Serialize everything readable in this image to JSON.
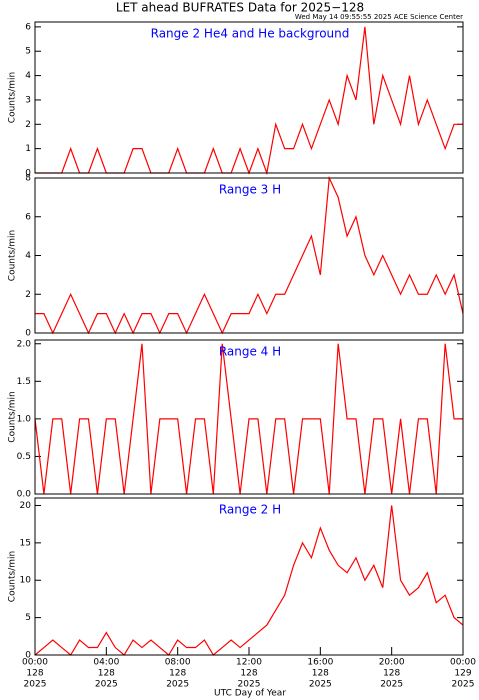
{
  "chart_data": [
    {
      "type": "line",
      "title": "LET ahead BUFRATES Data for 2025−128",
      "subtitle": "Wed May 14 09:55:55 2025 ACE Science Center",
      "label": "Range 2 He4 and He background",
      "ylabel": "Counts/min",
      "x": [
        0,
        0.5,
        1,
        1.5,
        2,
        2.5,
        3,
        3.5,
        4,
        4.5,
        5,
        5.5,
        6,
        6.5,
        7,
        7.5,
        8,
        8.5,
        9,
        9.5,
        10,
        10.5,
        11,
        11.5,
        12,
        12.5,
        13,
        13.5,
        14,
        14.5,
        15,
        15.5,
        16,
        16.5,
        17,
        17.5,
        18,
        18.5,
        19,
        19.5,
        20,
        20.5,
        21,
        21.5,
        22,
        22.5,
        23,
        23.5,
        24
      ],
      "series": [
        {
          "color": "#ff0000",
          "values": [
            0,
            0,
            0,
            0,
            1,
            0,
            0,
            1,
            0,
            0,
            0,
            1,
            1,
            0,
            0,
            0,
            1,
            0,
            0,
            0,
            1,
            0,
            0,
            1,
            0,
            1,
            0,
            2,
            1,
            1,
            2,
            1,
            2,
            3,
            2,
            4,
            3,
            6,
            2,
            4,
            3,
            2,
            4,
            2,
            3,
            2,
            1,
            2,
            2
          ]
        }
      ],
      "xlim": [
        0,
        24
      ],
      "ylim": [
        0,
        6.2
      ],
      "yticks": [
        0,
        1,
        2,
        3,
        4,
        5,
        6
      ]
    },
    {
      "type": "line",
      "label": "Range 3 H",
      "ylabel": "Counts/min",
      "x": [
        0,
        0.5,
        1,
        1.5,
        2,
        2.5,
        3,
        3.5,
        4,
        4.5,
        5,
        5.5,
        6,
        6.5,
        7,
        7.5,
        8,
        8.5,
        9,
        9.5,
        10,
        10.5,
        11,
        11.5,
        12,
        12.5,
        13,
        13.5,
        14,
        14.5,
        15,
        15.5,
        16,
        16.5,
        17,
        17.5,
        18,
        18.5,
        19,
        19.5,
        20,
        20.5,
        21,
        21.5,
        22,
        22.5,
        23,
        23.5,
        24
      ],
      "series": [
        {
          "color": "#ff0000",
          "values": [
            1,
            1,
            0,
            1,
            2,
            1,
            0,
            1,
            1,
            0,
            1,
            0,
            1,
            1,
            0,
            1,
            1,
            0,
            1,
            2,
            1,
            0,
            1,
            1,
            1,
            2,
            1,
            2,
            2,
            3,
            4,
            5,
            3,
            8,
            7,
            5,
            6,
            4,
            3,
            4,
            3,
            2,
            3,
            2,
            2,
            3,
            2,
            3,
            1
          ]
        }
      ],
      "xlim": [
        0,
        24
      ],
      "ylim": [
        0,
        8
      ],
      "yticks": [
        0,
        2,
        4,
        6,
        8
      ]
    },
    {
      "type": "line",
      "label": "Range 4 H",
      "ylabel": "Counts/min",
      "x": [
        0,
        0.5,
        1,
        1.5,
        2,
        2.5,
        3,
        3.5,
        4,
        4.5,
        5,
        5.5,
        6,
        6.5,
        7,
        7.5,
        8,
        8.5,
        9,
        9.5,
        10,
        10.5,
        11,
        11.5,
        12,
        12.5,
        13,
        13.5,
        14,
        14.5,
        15,
        15.5,
        16,
        16.5,
        17,
        17.5,
        18,
        18.5,
        19,
        19.5,
        20,
        20.5,
        21,
        21.5,
        22,
        22.5,
        23,
        23.5,
        24
      ],
      "series": [
        {
          "color": "#ff0000",
          "values": [
            1,
            0,
            1,
            1,
            0,
            1,
            1,
            0,
            1,
            1,
            0,
            1,
            2,
            0,
            1,
            1,
            1,
            0,
            1,
            1,
            0,
            2,
            1,
            0,
            1,
            1,
            0,
            1,
            1,
            0,
            1,
            1,
            1,
            0,
            2,
            1,
            1,
            0,
            1,
            1,
            0,
            1,
            0,
            1,
            1,
            0,
            2,
            1,
            1
          ]
        }
      ],
      "xlim": [
        0,
        24
      ],
      "ylim": [
        0,
        2.05
      ],
      "yticks": [
        {
          "value": 0,
          "label": "0.0"
        },
        {
          "value": 0.5,
          "label": "0.5"
        },
        {
          "value": 1,
          "label": "1.0"
        },
        {
          "value": 1.5,
          "label": "1.5"
        },
        {
          "value": 2,
          "label": "2.0"
        }
      ]
    },
    {
      "type": "line",
      "label": "Range 2 H",
      "ylabel": "Counts/min",
      "xlabel": "UTC Day of Year",
      "x": [
        0,
        0.5,
        1,
        1.5,
        2,
        2.5,
        3,
        3.5,
        4,
        4.5,
        5,
        5.5,
        6,
        6.5,
        7,
        7.5,
        8,
        8.5,
        9,
        9.5,
        10,
        10.5,
        11,
        11.5,
        12,
        12.5,
        13,
        13.5,
        14,
        14.5,
        15,
        15.5,
        16,
        16.5,
        17,
        17.5,
        18,
        18.5,
        19,
        19.5,
        20,
        20.5,
        21,
        21.5,
        22,
        22.5,
        23,
        23.5,
        24
      ],
      "series": [
        {
          "color": "#ff0000",
          "values": [
            0,
            1,
            2,
            1,
            0,
            2,
            1,
            1,
            3,
            1,
            0,
            2,
            1,
            2,
            1,
            0,
            2,
            1,
            1,
            2,
            0,
            1,
            2,
            1,
            2,
            3,
            4,
            6,
            8,
            12,
            15,
            13,
            17,
            14,
            12,
            11,
            13,
            10,
            12,
            9,
            20,
            10,
            8,
            9,
            11,
            7,
            8,
            5,
            4
          ]
        }
      ],
      "xlim": [
        0,
        24
      ],
      "ylim": [
        0,
        21
      ],
      "yticks": [
        0,
        5,
        10,
        15,
        20
      ],
      "xticks": [
        {
          "value": 0,
          "label": "00:00"
        },
        {
          "value": 4,
          "label": "04:00"
        },
        {
          "value": 8,
          "label": "08:00"
        },
        {
          "value": 12,
          "label": "12:00"
        },
        {
          "value": 16,
          "label": "16:00"
        },
        {
          "value": 20,
          "label": "20:00"
        },
        {
          "value": 24,
          "label": "00:00"
        }
      ],
      "xtick_days": [
        "128",
        "128",
        "128",
        "128",
        "128",
        "128",
        "129"
      ],
      "xtick_years": [
        "2025",
        "2025",
        "2025",
        "2025",
        "2025",
        "2025",
        "2025"
      ]
    }
  ]
}
